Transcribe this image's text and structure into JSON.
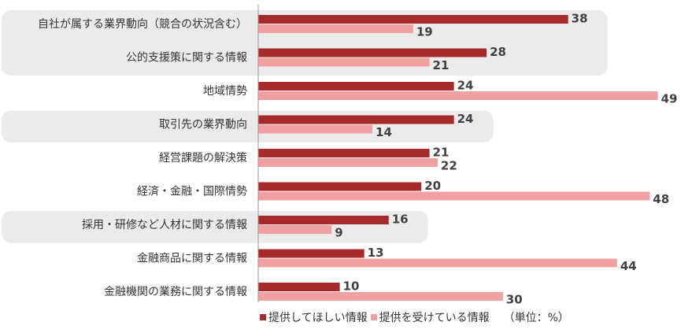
{
  "chart_data": {
    "type": "bar",
    "orientation": "horizontal",
    "categories": [
      "自社が属する業界動向（競合の状況含む）",
      "公的支援策に関する情報",
      "地域情勢",
      "取引先の業界動向",
      "経営課題の解決策",
      "経済・金融・国際情勢",
      "採用・研修など人材に関する情報",
      "金融商品に関する情報",
      "金融機関の業務に関する情報"
    ],
    "series": [
      {
        "name": "提供してほしい情報",
        "values": [
          38,
          28,
          24,
          24,
          21,
          20,
          16,
          13,
          10
        ],
        "color": "#a52a2a"
      },
      {
        "name": "提供を受けている情報",
        "values": [
          19,
          21,
          49,
          14,
          22,
          48,
          9,
          44,
          30
        ],
        "color": "#f0a0a0"
      }
    ],
    "highlighted_groups": [
      [
        0,
        1
      ],
      [
        3
      ],
      [
        6
      ]
    ],
    "xlim": [
      0,
      50
    ],
    "unit_label": "（単位：%）",
    "legend_position": "bottom",
    "grid": false
  },
  "legend": {
    "series1": "提供してほしい情報",
    "series2": "提供を受けている情報",
    "unit": "（単位：%）"
  },
  "colors": {
    "series1": "#a52a2a",
    "series2": "#f0a0a0",
    "highlight": "#ebebeb",
    "axis": "#999999",
    "label": "#333333",
    "value": "#404040"
  }
}
